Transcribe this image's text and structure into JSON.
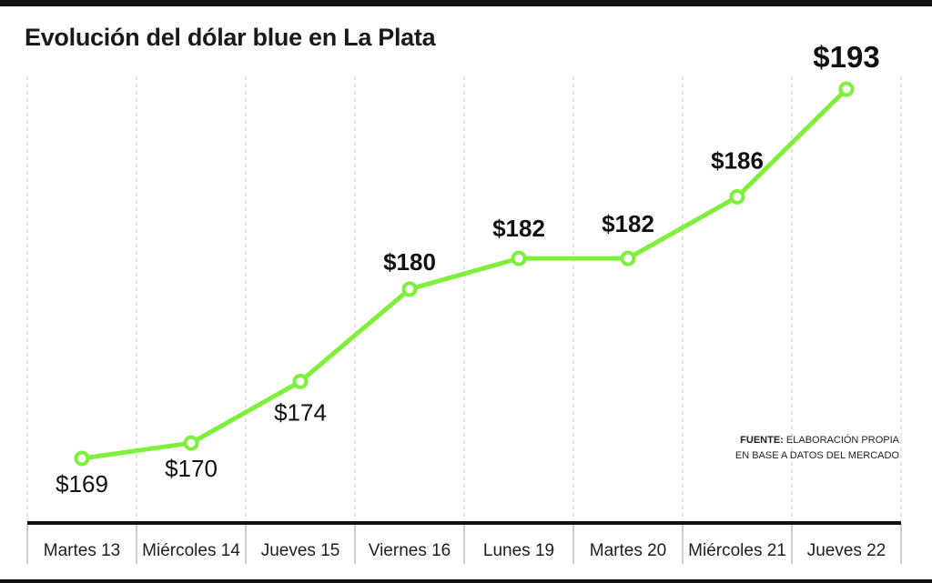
{
  "title": "Evolución del dólar blue en La Plata",
  "source": {
    "label": "FUENTE:",
    "text": "ELABORACIÓN PROPIA EN BASE A DATOS DEL MERCADO"
  },
  "colors": {
    "line": "#7ff03a",
    "text": "#111111",
    "grid": "#c8c8c8",
    "bar": "#111111"
  },
  "chart_data": {
    "type": "line",
    "title": "Evolución del dólar blue en La Plata",
    "categories": [
      "Martes 13",
      "Miércoles 14",
      "Jueves 15",
      "Viernes 16",
      "Lunes 19",
      "Martes 20",
      "Miércoles 21",
      "Jueves 22"
    ],
    "series": [
      {
        "values": [
          169,
          170,
          174,
          180,
          182,
          182,
          186,
          193
        ]
      }
    ],
    "value_labels": [
      "$169",
      "$170",
      "$174",
      "$180",
      "$182",
      "$182",
      "$186",
      "$193"
    ],
    "bold_labels": [
      false,
      false,
      false,
      true,
      true,
      true,
      true,
      true
    ],
    "ylim": [
      163,
      198
    ],
    "grid": "vertical-dashed",
    "legend": "none"
  }
}
